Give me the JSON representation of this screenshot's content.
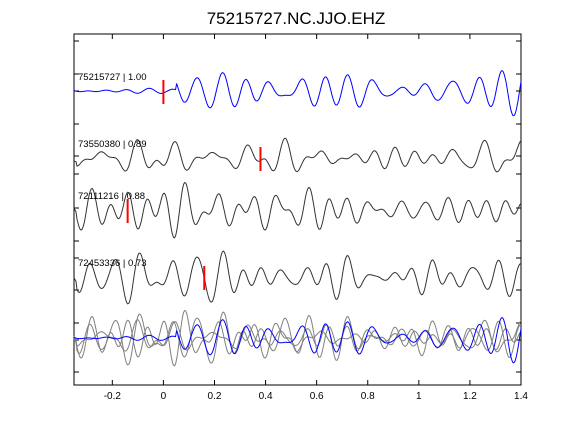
{
  "chart_data": {
    "type": "line",
    "title": "75215727.NC.JJO.EHZ",
    "xlabel": "",
    "ylabel": "",
    "xlim": [
      -0.35,
      1.4
    ],
    "x_ticks": [
      -0.2,
      0,
      0.2,
      0.4,
      0.6,
      0.8,
      1,
      1.2,
      1.4
    ],
    "x_tick_labels": [
      "-0.2",
      "0",
      "0.2",
      "0.4",
      "0.6",
      "0.8",
      "1",
      "1.2",
      "1.4"
    ],
    "grid": false,
    "colors": {
      "master": "#0000ff",
      "matched": "#333333",
      "overlay_gray": "#7f7f7f",
      "pick": "#ff0000",
      "frame": "#000000"
    },
    "traces": [
      {
        "label": "75215727 | 1.00",
        "event_id": "75215727",
        "correlation": 1.0,
        "pick_time": 0.0,
        "color": "master"
      },
      {
        "label": "73550380 | 0.89",
        "event_id": "73550380",
        "correlation": 0.89,
        "pick_time": 0.38,
        "color": "matched"
      },
      {
        "label": "72111216 | 0.88",
        "event_id": "72111216",
        "correlation": 0.88,
        "pick_time": -0.14,
        "color": "matched"
      },
      {
        "label": "72453336 | 0.73",
        "event_id": "72453336",
        "correlation": 0.73,
        "pick_time": 0.16,
        "color": "matched"
      }
    ],
    "overlay": {
      "description_visible": false,
      "series_count": 4
    }
  }
}
